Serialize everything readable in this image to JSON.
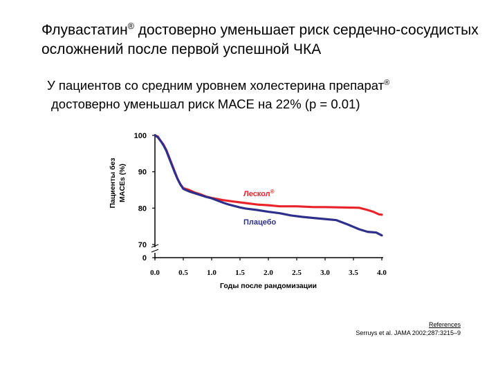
{
  "header": {
    "title_part1": "Флувастатин",
    "title_sup": "®",
    "title_part2": " достоверно уменьшает риск сердечно-сосудистых осложнений после первой успешной ЧКА"
  },
  "subtitle": {
    "part1": "У пациентов со средним уровнем холестерина препарат",
    "sup": "®",
    "part2": "достоверно уменьшал риск МАСЕ на 22% (р = 0.01)"
  },
  "chart_data": {
    "type": "line",
    "ylabel_line1": "Пациенты без",
    "ylabel_line2": "MACEs (%)",
    "xlabel": "Годы после рандомизации",
    "x_ticks": [
      "0.0",
      "0.5",
      "1.0",
      "1.5",
      "2.0",
      "2.5",
      "3.0",
      "3.5",
      "4.0"
    ],
    "y_ticks": [
      "100",
      "90",
      "80",
      "70",
      "0"
    ],
    "xlim": [
      0,
      4
    ],
    "ylim": [
      70,
      100
    ],
    "axis_break": true,
    "series": [
      {
        "name": "Лескол",
        "name_sup": "®",
        "color": "#e8242a",
        "points": [
          [
            0,
            100
          ],
          [
            0.05,
            99.7
          ],
          [
            0.1,
            98.5
          ],
          [
            0.15,
            97.5
          ],
          [
            0.2,
            96
          ],
          [
            0.25,
            94
          ],
          [
            0.3,
            92
          ],
          [
            0.35,
            90
          ],
          [
            0.4,
            88
          ],
          [
            0.45,
            86.5
          ],
          [
            0.5,
            85.5
          ],
          [
            0.6,
            85
          ],
          [
            0.7,
            84.3
          ],
          [
            0.8,
            83.8
          ],
          [
            0.9,
            83.2
          ],
          [
            1.0,
            82.8
          ],
          [
            1.2,
            82.2
          ],
          [
            1.4,
            81.8
          ],
          [
            1.6,
            81.4
          ],
          [
            1.8,
            81.0
          ],
          [
            2.0,
            80.8
          ],
          [
            2.2,
            80.5
          ],
          [
            2.5,
            80.5
          ],
          [
            2.8,
            80.3
          ],
          [
            3.0,
            80.3
          ],
          [
            3.3,
            80.2
          ],
          [
            3.6,
            80.1
          ],
          [
            3.75,
            79.5
          ],
          [
            3.85,
            79
          ],
          [
            3.95,
            78.3
          ],
          [
            4.0,
            78.2
          ]
        ]
      },
      {
        "name": "Плацебо",
        "color": "#2d2f8a",
        "points": [
          [
            0,
            100
          ],
          [
            0.05,
            99.5
          ],
          [
            0.1,
            98.5
          ],
          [
            0.15,
            97.3
          ],
          [
            0.2,
            95.8
          ],
          [
            0.25,
            93.8
          ],
          [
            0.3,
            91.8
          ],
          [
            0.35,
            89.8
          ],
          [
            0.4,
            88
          ],
          [
            0.45,
            86.5
          ],
          [
            0.5,
            85.3
          ],
          [
            0.6,
            84.6
          ],
          [
            0.7,
            84.1
          ],
          [
            0.8,
            83.6
          ],
          [
            0.9,
            83.1
          ],
          [
            1.0,
            82.7
          ],
          [
            1.1,
            82.1
          ],
          [
            1.2,
            81.5
          ],
          [
            1.3,
            81.0
          ],
          [
            1.4,
            80.6
          ],
          [
            1.5,
            80.2
          ],
          [
            1.6,
            79.9
          ],
          [
            1.8,
            79.5
          ],
          [
            2.0,
            79.0
          ],
          [
            2.2,
            78.6
          ],
          [
            2.4,
            78.0
          ],
          [
            2.6,
            77.6
          ],
          [
            2.8,
            77.3
          ],
          [
            3.0,
            77.0
          ],
          [
            3.2,
            76.7
          ],
          [
            3.4,
            75.5
          ],
          [
            3.6,
            74.2
          ],
          [
            3.75,
            73.5
          ],
          [
            3.9,
            73.3
          ],
          [
            4.0,
            72.5
          ]
        ]
      }
    ]
  },
  "references": {
    "heading": "References",
    "citation": "Serruys et al. JAMA 2002;287:3215–9"
  }
}
